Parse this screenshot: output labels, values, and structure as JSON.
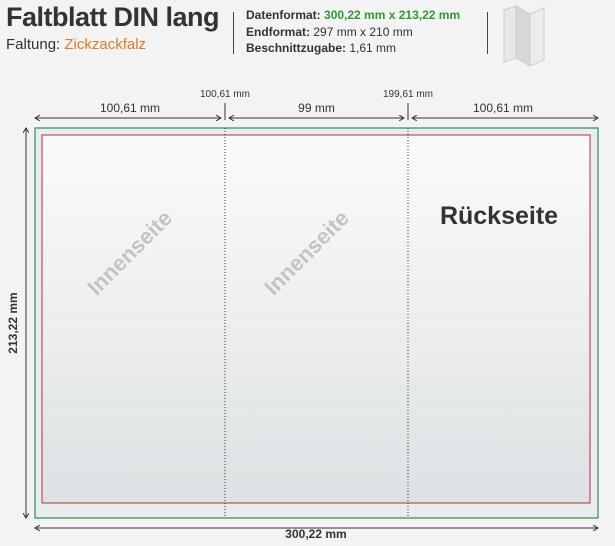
{
  "header": {
    "title": "Faltblatt DIN lang",
    "folding_label": "Faltung:",
    "folding_value": "Zickzackfalz"
  },
  "info": {
    "data_format_label": "Datenformat:",
    "data_format_value": "300,22 mm x 213,22 mm",
    "end_format_label": "Endformat:",
    "end_format_value": "297 mm x 210 mm",
    "bleed_label": "Beschnittzugabe:",
    "bleed_value": "1,61 mm"
  },
  "dimensions": {
    "panel_left": "100,61 mm",
    "panel_middle": "99 mm",
    "panel_right": "100,61 mm",
    "fold1": "100,61 mm",
    "fold2": "199,61 mm",
    "height": "213,22 mm",
    "width": "300,22 mm"
  },
  "panels": {
    "left": "Innenseite",
    "middle": "Innenseite",
    "right": "Rückseite"
  },
  "colors": {
    "bleed": "#2e8b57",
    "trim": "#c0283a",
    "accent_orange": "#e07b22",
    "accent_green": "#2e9a2e"
  },
  "icon": "zigzag-fold-leaflet-icon"
}
